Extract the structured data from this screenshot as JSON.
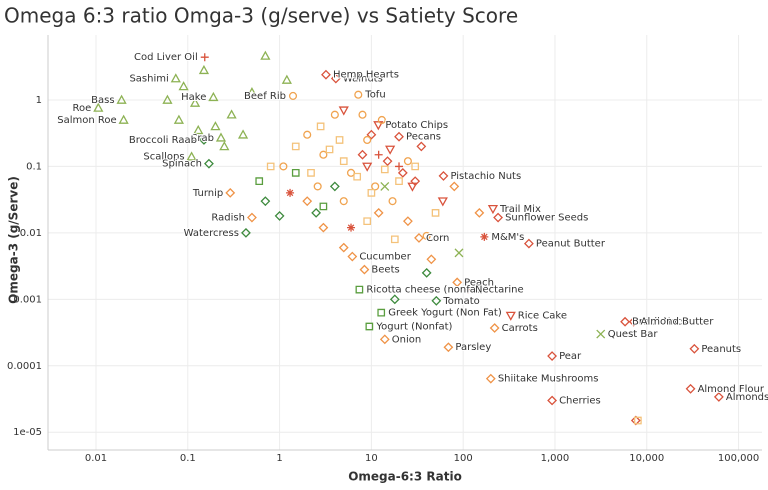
{
  "chart_data": {
    "type": "scatter",
    "title": "Omega 6:3 ratio Omga-3 (g/serve) vs Satiety Score",
    "x_label": "Omega-6:3 Ratio",
    "y_label": "Omega-3 (g/Serve)",
    "x_log": true,
    "y_log": true,
    "grid": true,
    "xlim": [
      0.003,
      180000
    ],
    "ylim": [
      5.4e-06,
      9.5
    ],
    "xticks": [
      0.01,
      0.1,
      1,
      10,
      100,
      {
        "value": 1000,
        "label": "1,000"
      },
      {
        "value": 10000,
        "label": "10,000"
      },
      {
        "value": 100000,
        "label": "100,000"
      }
    ],
    "yticks": [
      {
        "value": 1e-05,
        "label": "1e-05"
      },
      0.0001,
      0.001,
      0.01,
      0.1,
      1
    ],
    "series": [
      {
        "color": "#8db254",
        "marker": "triangle",
        "x": [
          0.019,
          0.074,
          0.0106,
          0.02,
          0.19,
          0.23,
          0.11,
          0.09,
          0.12,
          0.15,
          0.2,
          0.3,
          0.5,
          0.7,
          0.08,
          0.13,
          0.25,
          0.4,
          1.2,
          0.06
        ],
        "values": [
          1,
          2.1,
          0.76,
          0.5,
          1.1,
          0.27,
          0.14,
          1.6,
          0.9,
          2.8,
          0.4,
          0.6,
          1.3,
          4.6,
          0.5,
          0.35,
          0.2,
          0.3,
          2.0,
          1.0
        ],
        "labels": [
          "Bass",
          "Sashimi",
          "Roe",
          "Salmon Roe",
          "Hake",
          "Crab",
          "Scallops",
          null,
          null,
          null,
          null,
          null,
          null,
          null,
          null,
          null,
          null,
          null,
          null,
          null
        ]
      },
      {
        "color": "#3d8a3d",
        "marker": "diamond",
        "x": [
          0.15,
          0.17,
          0.43,
          51,
          0.7,
          1.0,
          2.5,
          4.0,
          18,
          40
        ],
        "values": [
          0.25,
          0.11,
          0.01,
          0.00095,
          0.03,
          0.018,
          0.02,
          0.05,
          0.001,
          0.0025
        ],
        "labels": [
          "Broccoli Raab",
          "Spinach",
          "Watercress",
          "Tomato",
          null,
          null,
          null,
          null,
          null,
          null
        ]
      },
      {
        "color": "#5a9e3f",
        "marker": "square",
        "x": [
          7.4,
          12.8,
          9.5,
          0.6,
          1.5,
          3
        ],
        "values": [
          0.0014,
          0.00063,
          0.00039,
          0.06,
          0.08,
          0.025
        ],
        "labels": [
          "Ricotta cheese (nonfat)",
          "Greek Yogurt (Non Fat)",
          "Yogurt (Nonfat)",
          null,
          null,
          null
        ]
      },
      {
        "color": "#ef9347",
        "marker": "diamond",
        "x": [
          0.29,
          0.5,
          33,
          8.4,
          14,
          69,
          220,
          200,
          6.2,
          86,
          3,
          5,
          12,
          25,
          45,
          2,
          80,
          150
        ],
        "values": [
          0.04,
          0.017,
          0.0084,
          0.0028,
          0.00025,
          0.00019,
          0.00037,
          6.4e-05,
          0.0044,
          0.0018,
          0.012,
          0.006,
          0.02,
          0.015,
          0.004,
          0.03,
          0.05,
          0.02
        ],
        "labels": [
          "Turnip",
          "Radish",
          "Corn",
          "Beets",
          "Onion",
          "Parsley",
          "Carrots",
          "Shiitake Mushrooms",
          "Cucumber",
          "Peach",
          null,
          null,
          null,
          null,
          null,
          null,
          null,
          null
        ]
      },
      {
        "color": "#d9533c",
        "marker": "diamond",
        "x": [
          930,
          930,
          33000,
          30000,
          61000,
          5800,
          7200,
          520,
          240,
          61,
          20,
          4.1,
          3.2,
          8,
          15,
          30,
          7600,
          10,
          22,
          35
        ],
        "values": [
          0.00014,
          3e-05,
          0.00018,
          4.5e-05,
          3.4e-05,
          0.00046,
          0.00046,
          0.0069,
          0.017,
          0.072,
          0.28,
          2.1,
          2.4,
          0.15,
          0.12,
          0.06,
          1.5e-05,
          0.3,
          0.08,
          0.2
        ],
        "labels": [
          "Pear",
          "Cherries",
          "Peanuts",
          "Almond Flour",
          "Almonds",
          "Brazil Nuts",
          "Almond Butter",
          "Peanut Butter",
          "Sunflower Seeds",
          "Pistachio Nuts",
          "Pecans",
          "Walnuts",
          "Hemp Hearts",
          null,
          null,
          null,
          null,
          null,
          null,
          null
        ]
      },
      {
        "color": "#d9533c",
        "marker": "down",
        "x": [
          211,
          330,
          11.9,
          9,
          16,
          28,
          60,
          5
        ],
        "values": [
          0.023,
          0.00057,
          0.42,
          0.1,
          0.18,
          0.05,
          0.03,
          0.7
        ],
        "labels": [
          "Trail Mix",
          "Rice Cake",
          "Potato Chips",
          null,
          null,
          null,
          null,
          null
        ]
      },
      {
        "color": "#d9533c",
        "marker": "plus",
        "x": [
          0.153,
          113,
          12,
          20
        ],
        "values": [
          4.4,
          0.0014,
          0.15,
          0.1
        ],
        "labels": [
          "Cod Liver Oil",
          "Nectarine",
          null,
          null
        ]
      },
      {
        "color": "#d9533c",
        "marker": "star",
        "x": [
          170,
          1.3,
          6
        ],
        "values": [
          0.0087,
          0.04,
          0.012
        ],
        "labels": [
          "M&M's",
          null,
          null
        ]
      },
      {
        "color": "#8db254",
        "marker": "x",
        "x": [
          3150,
          90,
          14
        ],
        "values": [
          0.0003,
          0.005,
          0.05
        ],
        "labels": [
          "Quest Bar",
          null,
          null
        ]
      },
      {
        "color": "#f0a34f",
        "marker": "circle",
        "x": [
          1.4,
          7.2,
          2,
          3,
          4,
          6,
          9,
          11,
          13,
          17,
          25,
          40,
          1.1,
          2.6,
          5,
          8
        ],
        "values": [
          1.15,
          1.2,
          0.3,
          0.15,
          0.6,
          0.08,
          0.25,
          0.05,
          0.5,
          0.03,
          0.12,
          0.009,
          0.1,
          0.05,
          0.03,
          0.6
        ],
        "labels": [
          "Beef Rib",
          "Tofu",
          null,
          null,
          null,
          null,
          null,
          null,
          null,
          null,
          null,
          null,
          null,
          null,
          null,
          null
        ]
      },
      {
        "color": "#f4c27a",
        "marker": "square",
        "x": [
          0.8,
          1.5,
          2.2,
          3.5,
          5,
          7,
          10,
          14,
          20,
          30,
          50,
          2.8,
          4.5,
          9,
          18,
          8000
        ],
        "values": [
          0.1,
          0.2,
          0.08,
          0.18,
          0.12,
          0.07,
          0.04,
          0.09,
          0.06,
          0.1,
          0.02,
          0.4,
          0.25,
          0.015,
          0.008,
          1.5e-05
        ],
        "labels": [
          null,
          null,
          null,
          null,
          null,
          null,
          null,
          null,
          null,
          null,
          null,
          null,
          null,
          null,
          null,
          null
        ]
      }
    ]
  }
}
